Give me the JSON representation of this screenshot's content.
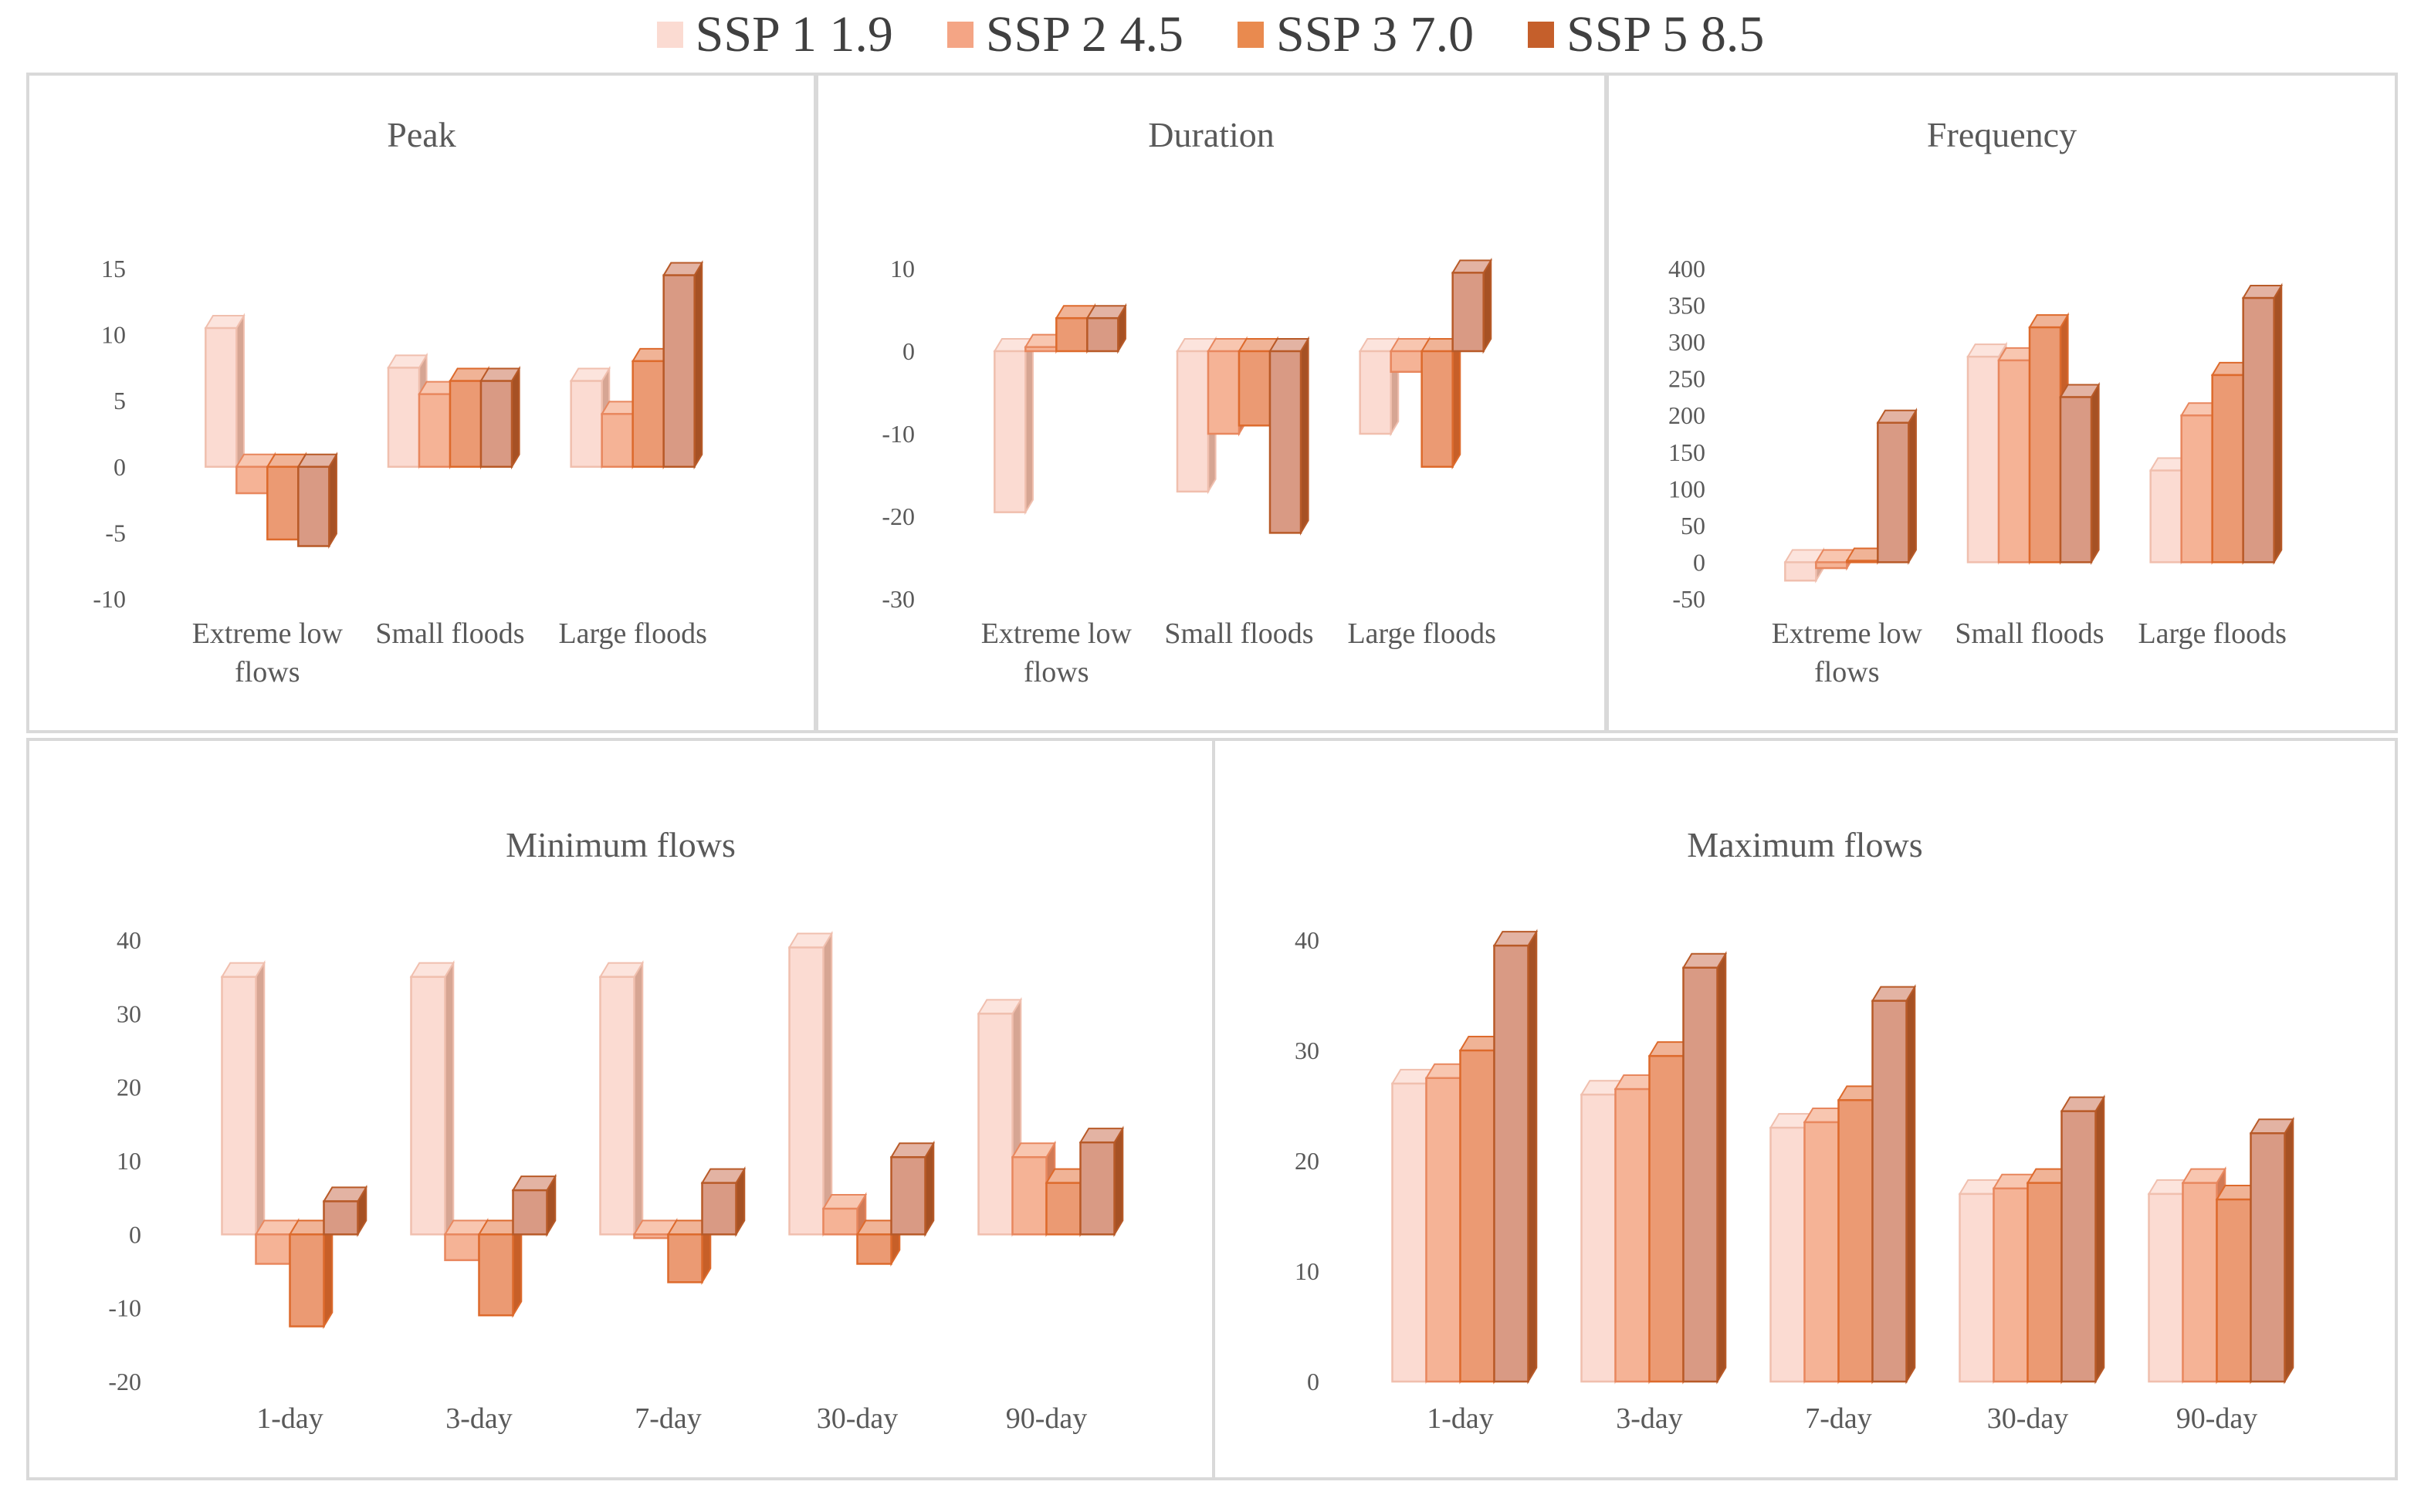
{
  "legend": {
    "series": [
      {
        "name": "SSP 1 1.9",
        "color": "#fbdbd2"
      },
      {
        "name": "SSP 2 4.5",
        "color": "#f4a585"
      },
      {
        "name": "SSP 3 7.0",
        "color": "#e98a4f"
      },
      {
        "name": "SSP 5 8.5",
        "color": "#d98b72"
      }
    ]
  },
  "chart_data": [
    {
      "type": "bar",
      "title": "Peak",
      "categories": [
        "Extreme low flows",
        "Small floods",
        "Large floods"
      ],
      "category_lines": [
        [
          "Extreme low",
          "flows"
        ],
        [
          "Small floods"
        ],
        [
          "Large floods"
        ]
      ],
      "yticks": [
        -10,
        -5,
        0,
        5,
        10,
        15
      ],
      "ylim": [
        -10,
        15
      ],
      "series": [
        {
          "name": "SSP 1 1.9",
          "values": [
            10.5,
            7.5,
            6.5
          ]
        },
        {
          "name": "SSP 2 4.5",
          "values": [
            -2,
            5.5,
            4
          ]
        },
        {
          "name": "SSP 3 7.0",
          "values": [
            -5.5,
            6.5,
            8
          ]
        },
        {
          "name": "SSP 5 8.5",
          "values": [
            -6,
            6.5,
            14.5
          ]
        }
      ]
    },
    {
      "type": "bar",
      "title": "Duration",
      "categories": [
        "Extreme low flows",
        "Small floods",
        "Large floods"
      ],
      "category_lines": [
        [
          "Extreme low",
          "flows"
        ],
        [
          "Small floods"
        ],
        [
          "Large floods"
        ]
      ],
      "yticks": [
        -30,
        -20,
        -10,
        0,
        10
      ],
      "ylim": [
        -30,
        10
      ],
      "series": [
        {
          "name": "SSP 1 1.9",
          "values": [
            -19.5,
            -17,
            -10
          ]
        },
        {
          "name": "SSP 2 4.5",
          "values": [
            0.5,
            -10,
            -2.5
          ]
        },
        {
          "name": "SSP 3 7.0",
          "values": [
            4,
            -9,
            -14
          ]
        },
        {
          "name": "SSP 5 8.5",
          "values": [
            4,
            -22,
            9.5
          ]
        }
      ]
    },
    {
      "type": "bar",
      "title": "Frequency",
      "categories": [
        "Extreme low flows",
        "Small floods",
        "Large floods"
      ],
      "category_lines": [
        [
          "Extreme low",
          "flows"
        ],
        [
          "Small floods"
        ],
        [
          "Large floods"
        ]
      ],
      "yticks": [
        -50,
        0,
        50,
        100,
        150,
        200,
        250,
        300,
        350,
        400
      ],
      "ylim": [
        -50,
        400
      ],
      "series": [
        {
          "name": "SSP 1 1.9",
          "values": [
            -25,
            280,
            125
          ]
        },
        {
          "name": "SSP 2 4.5",
          "values": [
            -8,
            275,
            200
          ]
        },
        {
          "name": "SSP 3 7.0",
          "values": [
            2,
            320,
            255
          ]
        },
        {
          "name": "SSP 5 8.5",
          "values": [
            190,
            225,
            360
          ]
        }
      ]
    },
    {
      "type": "bar",
      "title": "Minimum flows",
      "categories": [
        "1-day",
        "3-day",
        "7-day",
        "30-day",
        "90-day"
      ],
      "category_lines": [
        [
          "1-day"
        ],
        [
          "3-day"
        ],
        [
          "7-day"
        ],
        [
          "30-day"
        ],
        [
          "90-day"
        ]
      ],
      "yticks": [
        -20,
        -10,
        0,
        10,
        20,
        30,
        40
      ],
      "ylim": [
        -20,
        40
      ],
      "series": [
        {
          "name": "SSP 1 1.9",
          "values": [
            35,
            35,
            35,
            39,
            30
          ]
        },
        {
          "name": "SSP 2 4.5",
          "values": [
            -4,
            -3.5,
            -0.5,
            3.5,
            10.5
          ]
        },
        {
          "name": "SSP 3 7.0",
          "values": [
            -12.5,
            -11,
            -6.5,
            -4,
            7
          ]
        },
        {
          "name": "SSP 5 8.5",
          "values": [
            4.5,
            6,
            7,
            10.5,
            12.5
          ]
        }
      ]
    },
    {
      "type": "bar",
      "title": "Maximum flows",
      "categories": [
        "1-day",
        "3-day",
        "7-day",
        "30-day",
        "90-day"
      ],
      "category_lines": [
        [
          "1-day"
        ],
        [
          "3-day"
        ],
        [
          "7-day"
        ],
        [
          "30-day"
        ],
        [
          "90-day"
        ]
      ],
      "yticks": [
        0,
        10,
        20,
        30,
        40
      ],
      "ylim": [
        0,
        40
      ],
      "series": [
        {
          "name": "SSP 1 1.9",
          "values": [
            27,
            26,
            23,
            17,
            17
          ]
        },
        {
          "name": "SSP 2 4.5",
          "values": [
            27.5,
            26.5,
            23.5,
            17.5,
            18
          ]
        },
        {
          "name": "SSP 3 7.0",
          "values": [
            30,
            29.5,
            25.5,
            18,
            16.5
          ]
        },
        {
          "name": "SSP 5 8.5",
          "values": [
            39.5,
            37.5,
            34.5,
            24.5,
            22.5
          ]
        }
      ]
    }
  ]
}
